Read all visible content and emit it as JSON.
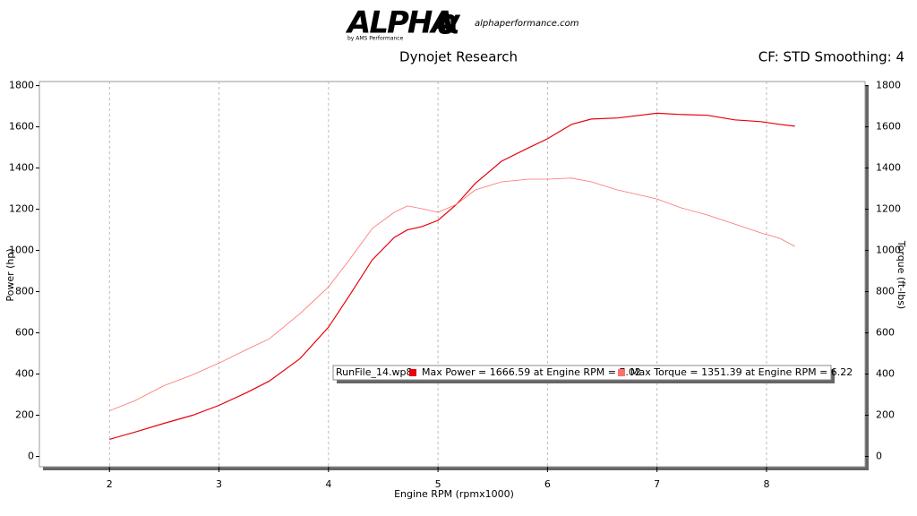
{
  "header": {
    "logo": "ALPHA",
    "logo_symbol": "α",
    "tagline": "by AMS Performance",
    "url": "alphaperformance.com"
  },
  "chart_data": {
    "type": "line",
    "title": "Dynojet Research",
    "subtitle": "CF: STD Smoothing: 4",
    "x_label": "Engine RPM (rpmx1000)",
    "y_label": "Power (hp)",
    "y2_label": "Torque (ft-lbs)",
    "run_file": "RunFile_14.wp8",
    "x": [
      2.0,
      2.23,
      2.5,
      2.76,
      3.0,
      3.25,
      3.46,
      3.74,
      4.0,
      4.19,
      4.4,
      4.6,
      4.72,
      4.85,
      5.0,
      5.17,
      5.34,
      5.58,
      5.83,
      6.0,
      6.22,
      6.4,
      6.64,
      7.0,
      7.22,
      7.46,
      7.71,
      7.95,
      8.12,
      8.26
    ],
    "series": [
      {
        "name": "Max Power = 1666.59 at Engine RPM = 7.02",
        "color": "#e8000b",
        "values": [
          83,
          118,
          161,
          200,
          248,
          309,
          366,
          475,
          627,
          780,
          954,
          1063,
          1100,
          1115,
          1146,
          1224,
          1325,
          1433,
          1499,
          1542,
          1612,
          1638,
          1643,
          1666,
          1660,
          1656,
          1634,
          1625,
          1612,
          1603
        ]
      },
      {
        "name": "Max Torque = 1351.39 at Engine RPM = 6.22",
        "color": "#ff7070",
        "axis": "y2",
        "values": [
          222,
          270,
          344,
          396,
          453,
          518,
          571,
          693,
          823,
          954,
          1107,
          1185,
          1216,
          1203,
          1185,
          1224,
          1294,
          1333,
          1346,
          1346,
          1351,
          1333,
          1294,
          1250,
          1207,
          1172,
          1128,
          1085,
          1059,
          1020
        ]
      }
    ],
    "xlim": [
      1.36,
      8.9
    ],
    "xticks": [
      2,
      3,
      4,
      5,
      6,
      7,
      8
    ],
    "ylim": [
      -50,
      1820
    ],
    "yticks": [
      0,
      200,
      400,
      600,
      800,
      1000,
      1200,
      1400,
      1600,
      1800
    ],
    "y2lim": [
      -50,
      1820
    ],
    "y2ticks": [
      0,
      200,
      400,
      600,
      800,
      1000,
      1200,
      1400,
      1600,
      1800
    ],
    "grid": true
  }
}
